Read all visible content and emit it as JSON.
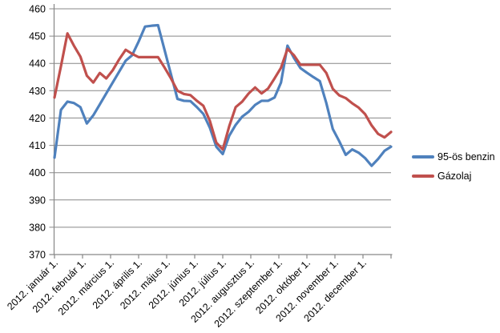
{
  "chart_data": {
    "type": "line",
    "title": "",
    "xlabel": "",
    "ylabel": "",
    "ylim": [
      370,
      460
    ],
    "y_ticks": [
      370,
      380,
      390,
      400,
      410,
      420,
      430,
      440,
      450,
      460
    ],
    "grid": true,
    "legend_position": "right",
    "x_tick_labels": [
      "2012. január 1.",
      "2012. február 1.",
      "2012. március 1.",
      "2012. április 1.",
      "2012. május 1.",
      "2012. június 1.",
      "2012. július 1.",
      "2012. augusztus 1.",
      "2012. szeptember 1.",
      "2012. október 1.",
      "2012. november 1.",
      "2012. december 1."
    ],
    "series": [
      {
        "name": "95-ös benzin",
        "color": "#4F81BD",
        "values": [
          405.5,
          423,
          426,
          425.5,
          424,
          418,
          421,
          425,
          429,
          433,
          437,
          441,
          443,
          448,
          453.5,
          453.8,
          454,
          445,
          436,
          427,
          426.3,
          426.2,
          424,
          421.5,
          416.5,
          409.5,
          406.8,
          413.5,
          417.5,
          420.5,
          422.3,
          424.8,
          426.3,
          426.3,
          427.5,
          433,
          446.5,
          442,
          438.3,
          436.6,
          435,
          433.5,
          425.5,
          416,
          411.5,
          406.5,
          408.5,
          407.3,
          405.3,
          402.5,
          405,
          408,
          409.5
        ]
      },
      {
        "name": "Gázolaj",
        "color": "#C0504D",
        "values": [
          427.5,
          439,
          451,
          446.5,
          442.5,
          435.5,
          433,
          436.5,
          434.5,
          437.5,
          441.5,
          445,
          443.5,
          442.3,
          442.3,
          442.3,
          442.3,
          438.5,
          434.5,
          430,
          428.8,
          428.4,
          426.3,
          424.5,
          419,
          411,
          408.5,
          417,
          424,
          426,
          429,
          431.2,
          429,
          430.8,
          434.5,
          438.4,
          445.3,
          443,
          439.5,
          439.5,
          439.5,
          439.5,
          436.5,
          430.7,
          428.3,
          427.3,
          425.4,
          423.8,
          421.4,
          417.3,
          414.2,
          412.9,
          414.9
        ]
      }
    ]
  },
  "colors": {
    "gridline": "#878787",
    "axis": "#878787",
    "tick_text": "#000000",
    "background": "#FFFFFF"
  }
}
